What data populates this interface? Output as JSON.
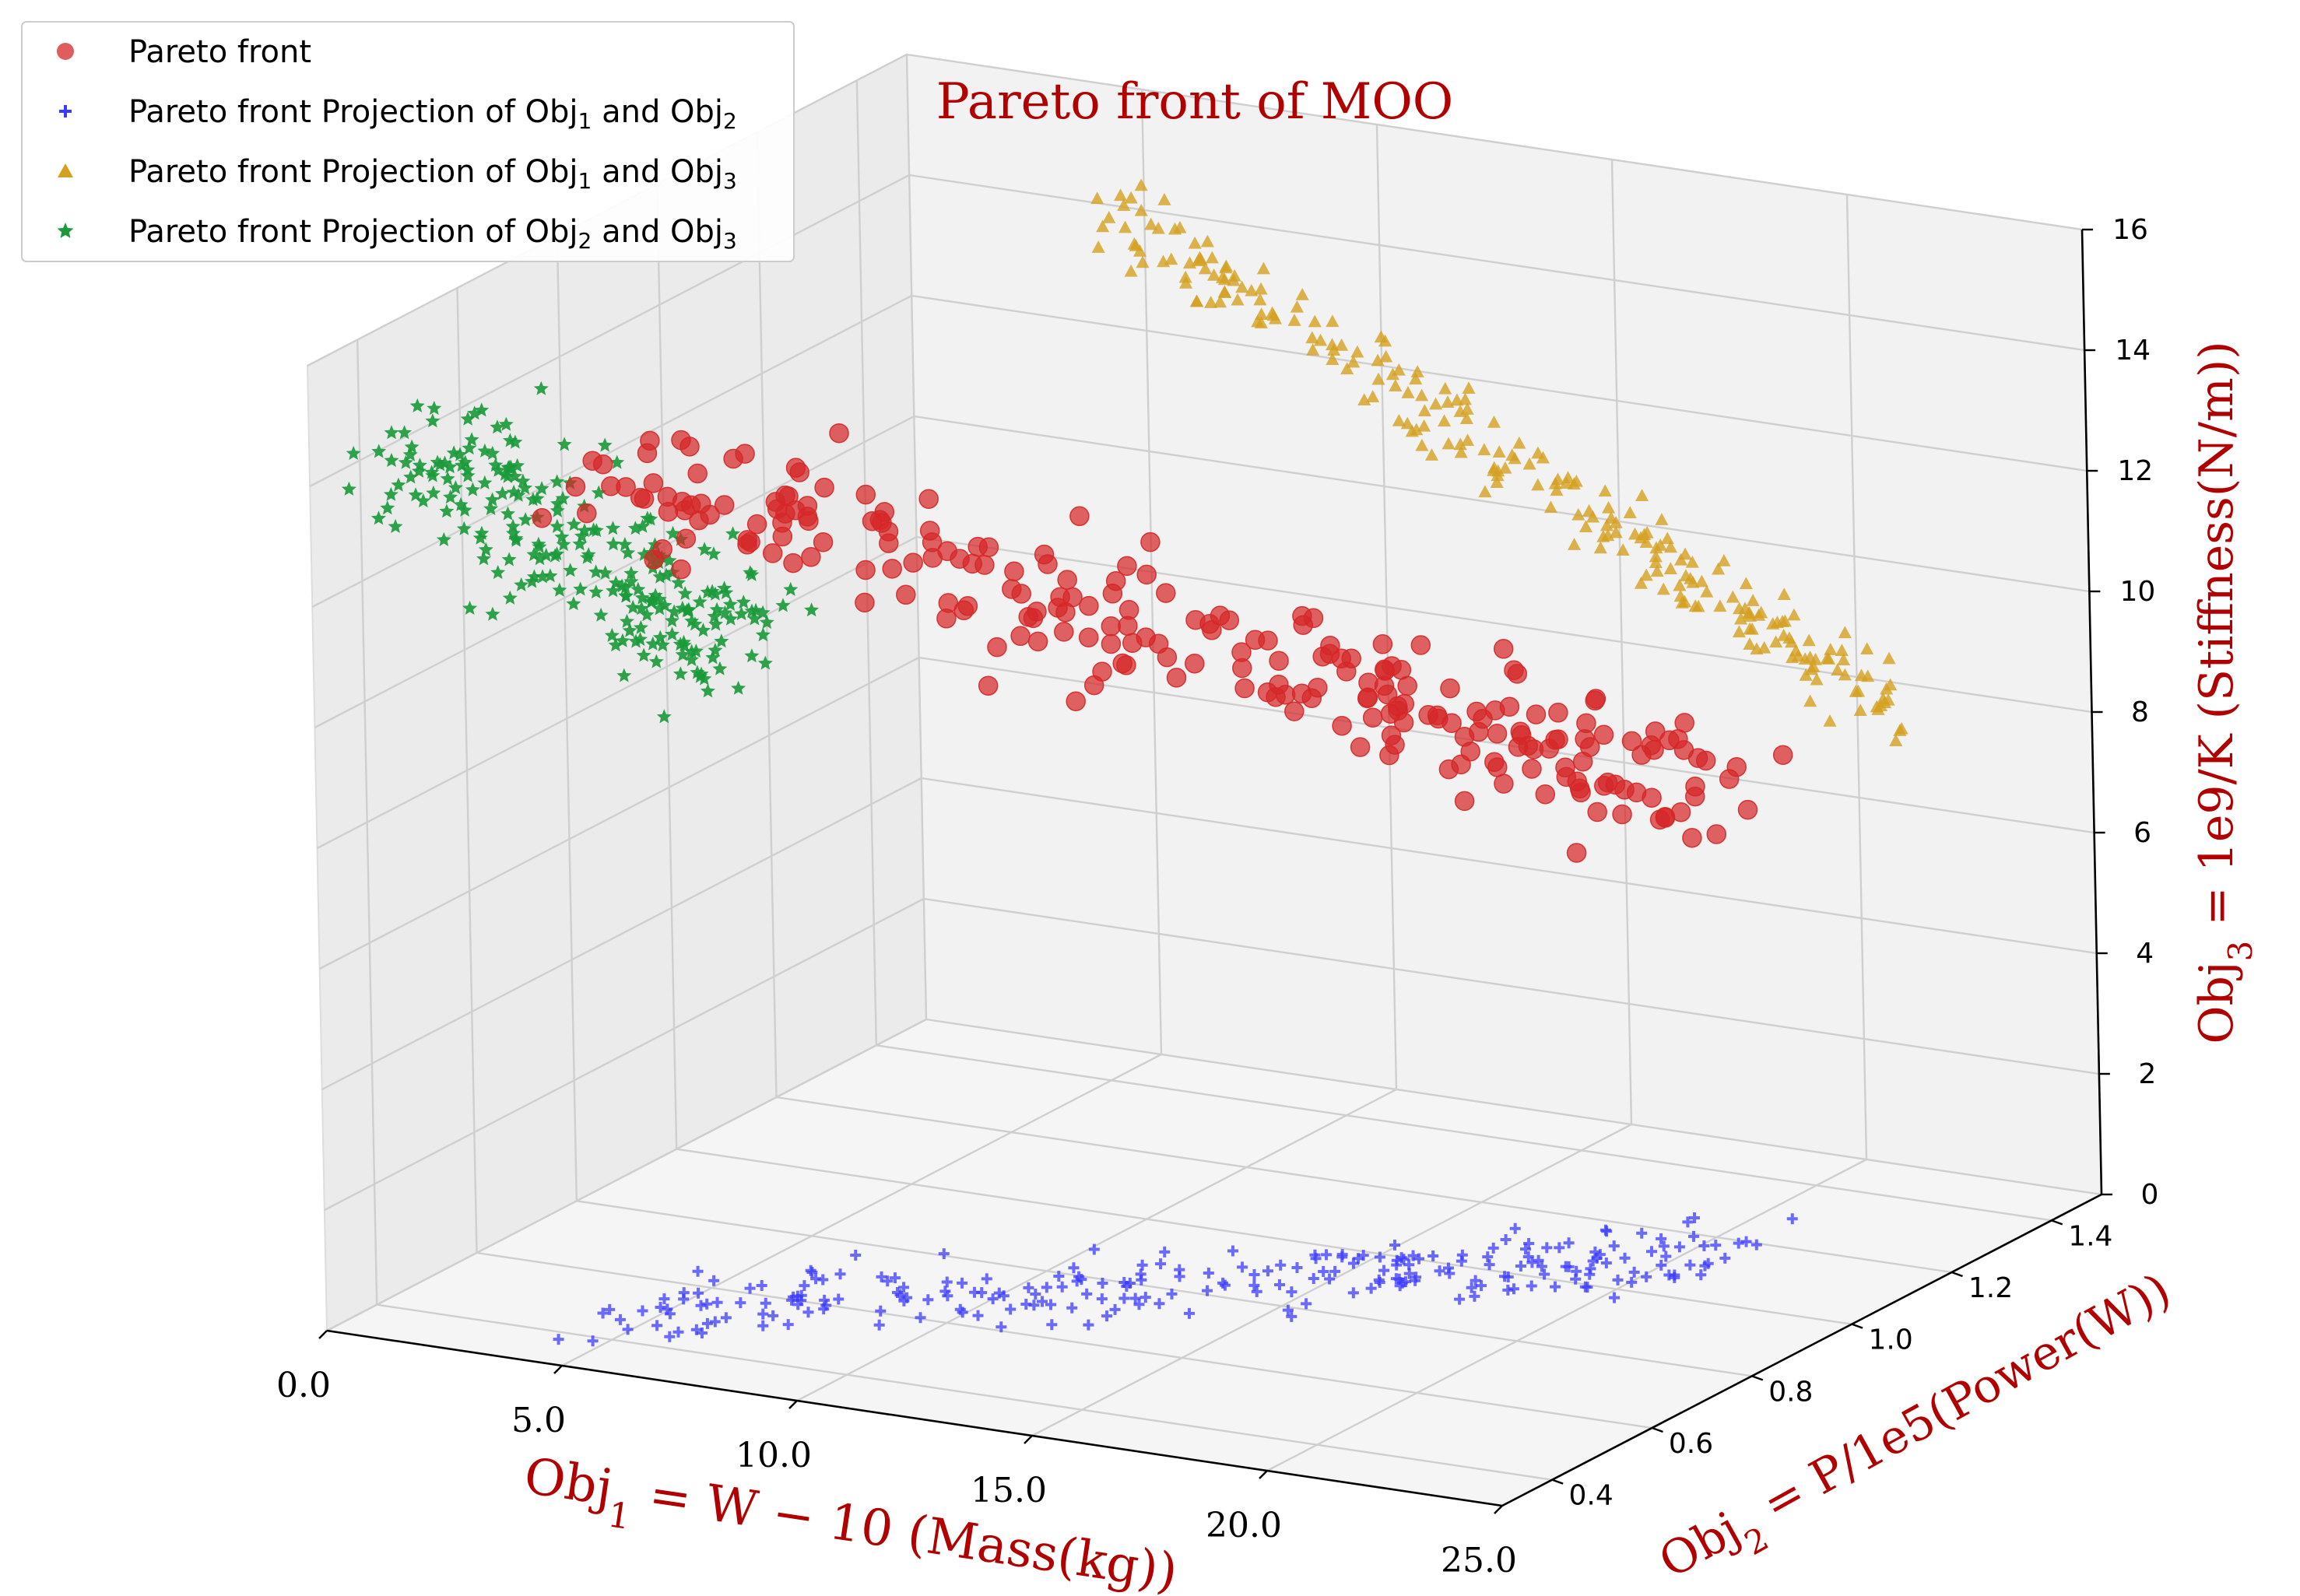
{
  "chart_data": {
    "type": "scatter",
    "projection": "3d",
    "title": "Pareto front of MOO",
    "xlabel": {
      "base": "Obj",
      "sub": "1",
      "expr": " = W − 10 (Mass(kg))"
    },
    "ylabel": {
      "base": "Obj",
      "sub": "2",
      "expr": " = P/1e5(Power(W))"
    },
    "zlabel": {
      "base": "Obj",
      "sub": "3",
      "expr": " = 1e9/K (Stiffness(N/m))"
    },
    "xlim": [
      0,
      25
    ],
    "ylim": [
      0.3,
      1.5
    ],
    "zlim": [
      0,
      16
    ],
    "xticks": [
      0,
      5,
      10,
      15,
      20,
      25
    ],
    "xtick_labels": [
      "0.0",
      "5.0",
      "10.0",
      "15.0",
      "20.0",
      "25.0"
    ],
    "yticks": [
      0.4,
      0.6,
      0.8,
      1.0,
      1.2,
      1.4
    ],
    "ytick_labels": [
      "0.4",
      "0.6",
      "0.8",
      "1.0",
      "1.2",
      "1.4"
    ],
    "zticks": [
      0,
      2,
      4,
      6,
      8,
      10,
      12,
      14,
      16
    ],
    "ztick_labels": [
      "0",
      "2",
      "4",
      "6",
      "8",
      "10",
      "12",
      "14",
      "16"
    ],
    "grid": true,
    "legend_position": "top-left",
    "legend": [
      {
        "text": "Pareto front",
        "marker": "circle",
        "color": "#d62728"
      },
      {
        "base": "Pareto front Projection of Obj",
        "s1": "1",
        "mid": " and Obj",
        "s2": "2",
        "marker": "plus",
        "color": "#3b3bff"
      },
      {
        "base": "Pareto front Projection of Obj",
        "s1": "1",
        "mid": " and Obj",
        "s2": "3",
        "marker": "triangle",
        "color": "#d4a020"
      },
      {
        "base": "Pareto front Projection of Obj",
        "s1": "2",
        "mid": " and Obj",
        "s2": "3",
        "marker": "star",
        "color": "#1a9a3a"
      }
    ],
    "series": [
      {
        "name": "Pareto front",
        "marker": "circle",
        "color": "#d62728",
        "generator": {
          "count": 250,
          "x_range": [
            4,
            21
          ],
          "y_at_x_min": 0.5,
          "y_at_x_max": 1.15,
          "y_spread": 0.2,
          "z_at_x_min": 14,
          "z_at_x_max": 7.5,
          "z_spread": 1.0,
          "z_min": 6.5,
          "seed": 7
        }
      }
    ],
    "projections": [
      {
        "name": "Projection of Obj1 and Obj2",
        "plane": "z",
        "plane_value": 0,
        "marker": "plus",
        "color": "#3b3bff"
      },
      {
        "name": "Projection of Obj1 and Obj3",
        "plane": "y",
        "plane_value": 1.5,
        "marker": "triangle",
        "color": "#d4a020"
      },
      {
        "name": "Projection of Obj2 and Obj3",
        "plane": "x",
        "plane_value": 0,
        "marker": "star",
        "color": "#1a9a3a"
      }
    ],
    "colors": {
      "title": "#b00000",
      "axis_label": "#b00000",
      "pane_back": "#f2f2f2",
      "pane_side": "#ebebeb",
      "pane_floor": "#f5f5f5",
      "grid": "#cfcfcf",
      "tick_text": "#000000"
    }
  }
}
